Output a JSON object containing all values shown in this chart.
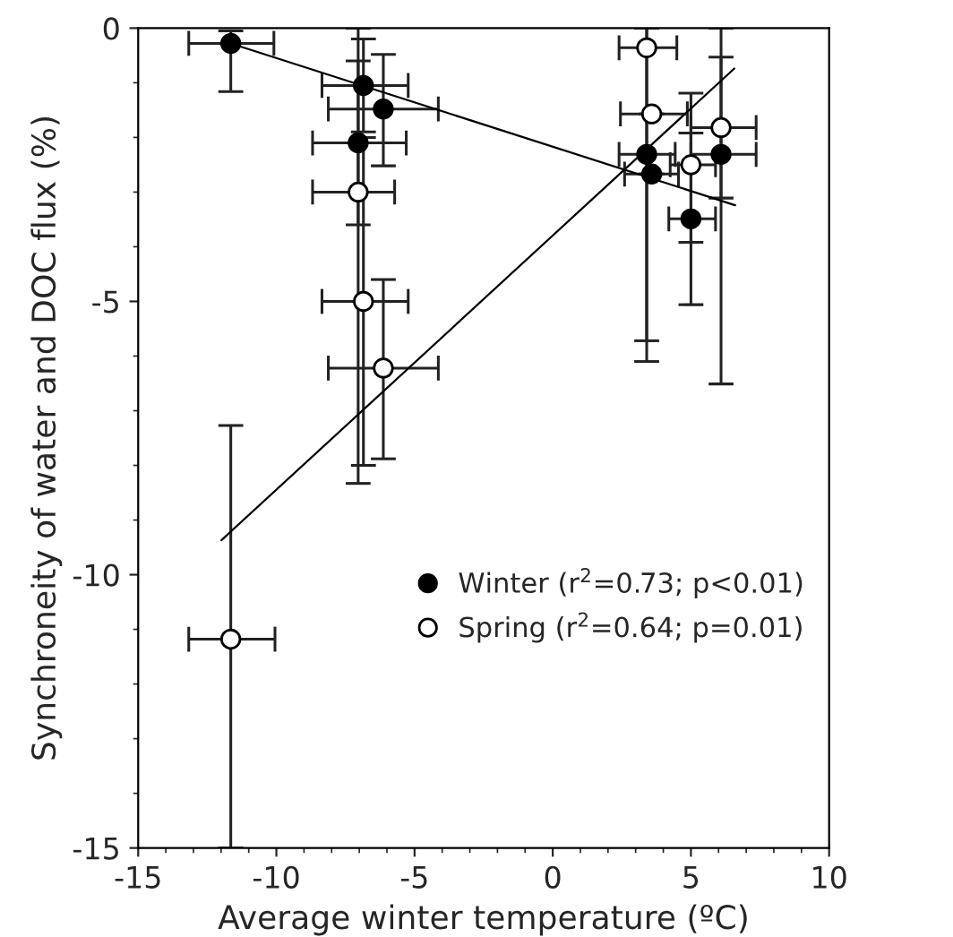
{
  "chart_data": {
    "type": "scatter",
    "xlabel": "Average winter temperature (ºC)",
    "ylabel": "Synchroneity of water and DOC flux (%)",
    "xlim": [
      -15,
      10
    ],
    "xticks": [
      -15,
      -10,
      -5,
      0,
      5,
      10
    ],
    "ylim": [
      -15,
      0
    ],
    "yticks": [
      -15,
      -10,
      -5,
      0
    ],
    "grid": false,
    "legend": "bottom right",
    "series": [
      {
        "name": "Winter (r$^{2}$=0.73; p<0.01)",
        "color": "#000000",
        "marker": "circle",
        "x": [
          -11.65,
          -6.85,
          -6.13,
          -7.04,
          3.4,
          3.58,
          5.0,
          6.09
        ],
        "values": [
          -0.28,
          -1.05,
          -1.48,
          -2.1,
          -2.31,
          -2.67,
          -3.49,
          -2.31
        ],
        "errors": [
          [
            -1.16,
            -0.05
          ],
          [
            -1.9,
            -0.2
          ],
          [
            -2.52,
            -0.48
          ],
          [
            -3.6,
            -0.6
          ],
          [
            -5.72,
            0
          ],
          null,
          [
            -5.06,
            -1.92
          ],
          [
            -6.51,
            0
          ]
        ],
        "xerrors": [
          [
            -13.17,
            -10.09
          ],
          [
            -8.35,
            -5.23
          ],
          [
            -8.12,
            -4.14
          ],
          [
            -8.69,
            -5.3
          ],
          [
            2.4,
            4.43
          ],
          [
            2.6,
            4.55
          ],
          [
            4.2,
            5.89
          ],
          [
            5.0,
            7.36
          ]
        ]
      },
      {
        "name": "Spring (r$^{2}$=0.64; p=0.01)",
        "color": "#ffffff",
        "marker": "circle",
        "x": [
          -11.65,
          -7.04,
          -6.85,
          -6.13,
          3.4,
          3.58,
          5.0,
          6.09
        ],
        "values": [
          -11.18,
          -3.0,
          -5.0,
          -6.22,
          -0.36,
          -1.57,
          -2.5,
          -1.82
        ],
        "errors": [
          [
            -15,
            -7.27
          ],
          [
            -8.33,
            0
          ],
          [
            -8.0,
            -2.0
          ],
          [
            -7.88,
            -4.6
          ],
          [
            -6.1,
            0
          ],
          null,
          [
            -3.92,
            -1.19
          ],
          [
            -3.11,
            -0.53
          ]
        ],
        "xerrors": [
          [
            -13.17,
            -10.05
          ],
          [
            -8.69,
            -5.72
          ],
          [
            -8.35,
            -5.23
          ],
          [
            -8.12,
            -4.14
          ],
          [
            2.4,
            4.49
          ],
          [
            2.45,
            4.87
          ],
          [
            4.25,
            5.89
          ],
          [
            5.0,
            7.36
          ]
        ]
      },
      {
        "type": "line",
        "color": "#000000",
        "x": [
          -11.65,
          6.6
        ],
        "values": [
          -0.28,
          -3.24
        ]
      },
      {
        "type": "line",
        "color": "#000000",
        "x": [
          -11.99,
          6.57
        ],
        "values": [
          -9.37,
          -0.74
        ]
      }
    ]
  }
}
